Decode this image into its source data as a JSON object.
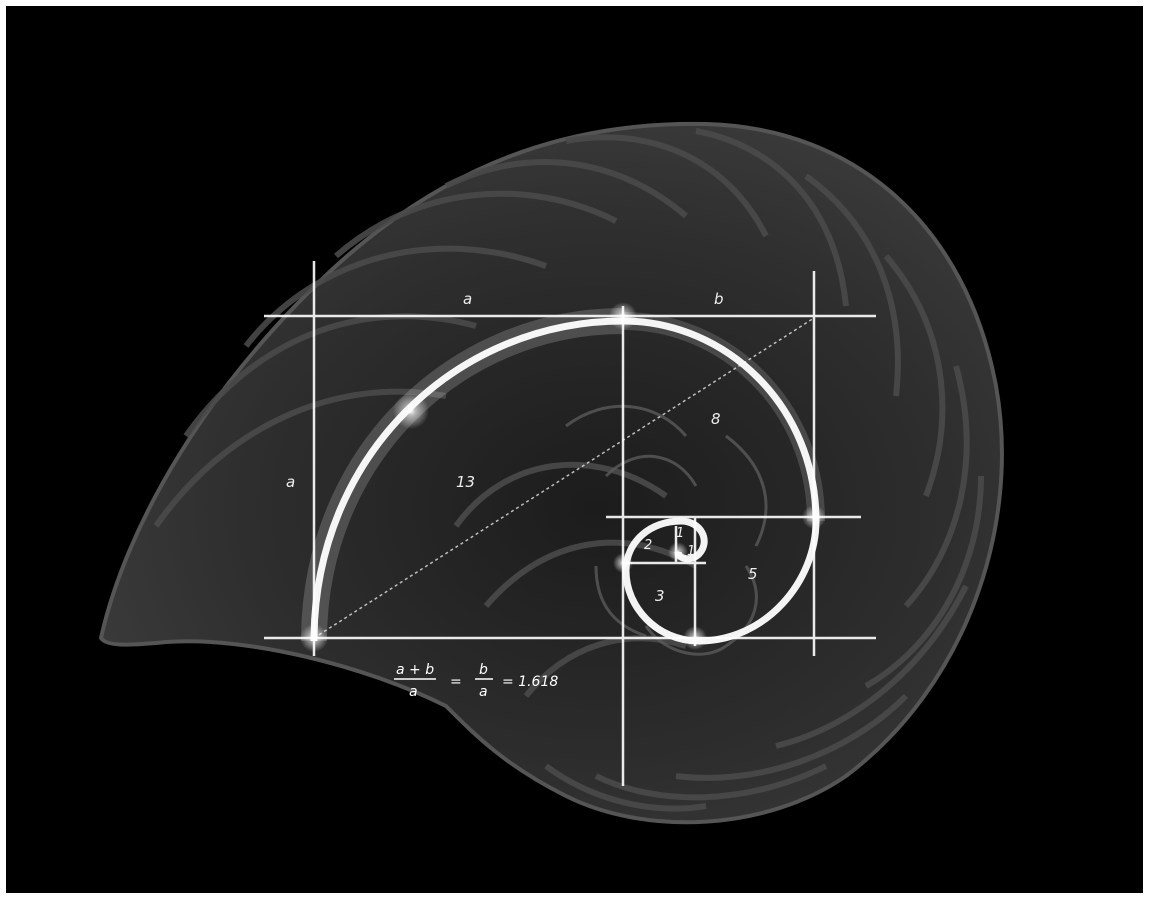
{
  "labels": {
    "top_a": "a",
    "top_b": "b",
    "left_a": "a",
    "sq13": "13",
    "sq8": "8",
    "sq5": "5",
    "sq3": "3",
    "sq2": "2",
    "sq1a": "1",
    "sq1b": "1"
  },
  "formula": {
    "num1": "a + b",
    "den1": "a",
    "eq1": "=",
    "num2": "b",
    "den2": "a",
    "eq2": "= 1.618"
  },
  "colors": {
    "background": "#000000",
    "shell": "#3a3a3a",
    "lines": "#ffffff"
  }
}
